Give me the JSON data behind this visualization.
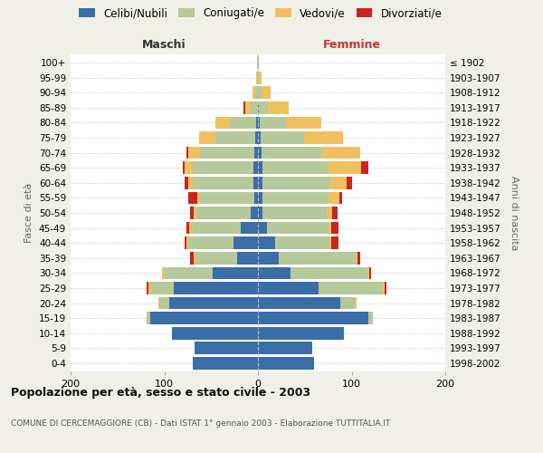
{
  "age_groups": [
    "0-4",
    "5-9",
    "10-14",
    "15-19",
    "20-24",
    "25-29",
    "30-34",
    "35-39",
    "40-44",
    "45-49",
    "50-54",
    "55-59",
    "60-64",
    "65-69",
    "70-74",
    "75-79",
    "80-84",
    "85-89",
    "90-94",
    "95-99",
    "100+"
  ],
  "birth_years": [
    "1998-2002",
    "1993-1997",
    "1988-1992",
    "1983-1987",
    "1978-1982",
    "1973-1977",
    "1968-1972",
    "1963-1967",
    "1958-1962",
    "1953-1957",
    "1948-1952",
    "1943-1947",
    "1938-1942",
    "1933-1937",
    "1928-1932",
    "1923-1927",
    "1918-1922",
    "1913-1917",
    "1908-1912",
    "1903-1907",
    "≤ 1902"
  ],
  "male_celibi": [
    70,
    68,
    92,
    115,
    95,
    90,
    48,
    22,
    26,
    18,
    8,
    4,
    5,
    5,
    4,
    3,
    2,
    0,
    0,
    0,
    0
  ],
  "male_coniugati": [
    0,
    0,
    0,
    4,
    10,
    25,
    52,
    45,
    48,
    52,
    58,
    58,
    65,
    65,
    58,
    42,
    28,
    8,
    3,
    1,
    1
  ],
  "male_vedovi": [
    0,
    0,
    0,
    0,
    1,
    2,
    2,
    2,
    2,
    3,
    3,
    3,
    4,
    8,
    12,
    18,
    15,
    6,
    3,
    1,
    0
  ],
  "male_divorziati": [
    0,
    0,
    0,
    0,
    0,
    2,
    0,
    3,
    2,
    3,
    3,
    9,
    4,
    2,
    2,
    0,
    0,
    1,
    0,
    0,
    0
  ],
  "female_nubili": [
    60,
    58,
    92,
    118,
    88,
    65,
    35,
    22,
    18,
    10,
    5,
    5,
    5,
    5,
    4,
    3,
    2,
    1,
    0,
    0,
    0
  ],
  "female_coniugate": [
    0,
    0,
    0,
    5,
    15,
    68,
    82,
    82,
    58,
    65,
    68,
    70,
    72,
    70,
    65,
    46,
    28,
    10,
    4,
    1,
    1
  ],
  "female_vedove": [
    0,
    0,
    0,
    0,
    2,
    2,
    2,
    2,
    2,
    3,
    6,
    12,
    18,
    35,
    40,
    42,
    38,
    22,
    10,
    3,
    0
  ],
  "female_divorziate": [
    0,
    0,
    0,
    0,
    0,
    2,
    2,
    3,
    8,
    8,
    6,
    3,
    5,
    8,
    0,
    0,
    0,
    0,
    0,
    0,
    0
  ],
  "color_celibi": "#3b6ea8",
  "color_coniugati": "#b5c99a",
  "color_vedovi": "#f0c060",
  "color_divorziati": "#cc2222",
  "xlim": 200,
  "title": "Popolazione per età, sesso e stato civile - 2003",
  "subtitle": "COMUNE DI CERCEMAGGIORE (CB) - Dati ISTAT 1° gennaio 2003 - Elaborazione TUTTITALIA.IT",
  "ylabel_left": "Fasce di età",
  "ylabel_right": "Anni di nascita",
  "legend_labels": [
    "Celibi/Nubili",
    "Coniugati/e",
    "Vedovi/e",
    "Divorziati/e"
  ],
  "bg_color": "#f0f0e8",
  "plot_bg": "#ffffff",
  "label_maschi": "Maschi",
  "label_femmine": "Femmine"
}
